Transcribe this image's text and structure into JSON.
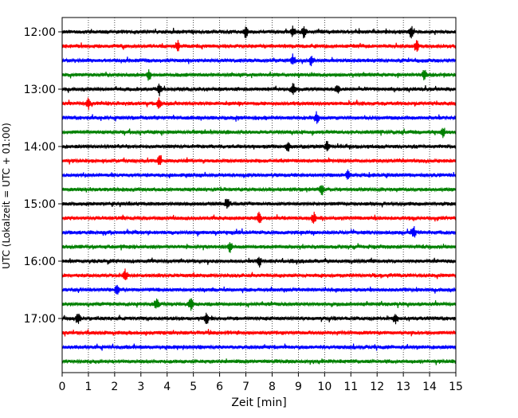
{
  "chart_data": {
    "type": "line",
    "title": "",
    "xlabel": "Zeit  [min]",
    "ylabel": "UTC (Lokalzeit = UTC + 01:00)",
    "xlim": [
      0,
      15
    ],
    "x_ticks": [
      0,
      1,
      2,
      3,
      4,
      5,
      6,
      7,
      8,
      9,
      10,
      11,
      12,
      13,
      14,
      15
    ],
    "x_grid": true,
    "y_tick_labels": [
      "12:00",
      "13:00",
      "14:00",
      "15:00",
      "16:00",
      "17:00"
    ],
    "trace_interval_min": 15,
    "traces_start": "12:00",
    "color_cycle": [
      "#000000",
      "#ff0000",
      "#0000ff",
      "#008000"
    ],
    "series": [
      {
        "start": "12:00",
        "color": "#000000",
        "events_min": [
          7.0,
          8.8,
          9.2,
          13.3
        ]
      },
      {
        "start": "12:15",
        "color": "#ff0000",
        "events_min": [
          4.4,
          13.5
        ]
      },
      {
        "start": "12:30",
        "color": "#0000ff",
        "events_min": [
          8.8,
          9.5
        ]
      },
      {
        "start": "12:45",
        "color": "#008000",
        "events_min": [
          3.3,
          13.8
        ]
      },
      {
        "start": "13:00",
        "color": "#000000",
        "events_min": [
          3.7,
          8.8,
          10.5
        ]
      },
      {
        "start": "13:15",
        "color": "#ff0000",
        "events_min": [
          1.0,
          3.7
        ]
      },
      {
        "start": "13:30",
        "color": "#0000ff",
        "events_min": [
          9.7
        ]
      },
      {
        "start": "13:45",
        "color": "#008000",
        "events_min": [
          14.5
        ]
      },
      {
        "start": "14:00",
        "color": "#000000",
        "events_min": [
          8.6,
          10.1
        ]
      },
      {
        "start": "14:15",
        "color": "#ff0000",
        "events_min": [
          3.7
        ]
      },
      {
        "start": "14:30",
        "color": "#0000ff",
        "events_min": [
          10.9
        ]
      },
      {
        "start": "14:45",
        "color": "#008000",
        "events_min": [
          9.9
        ]
      },
      {
        "start": "15:00",
        "color": "#000000",
        "events_min": [
          6.3
        ]
      },
      {
        "start": "15:15",
        "color": "#ff0000",
        "events_min": [
          7.5,
          9.6
        ]
      },
      {
        "start": "15:30",
        "color": "#0000ff",
        "events_min": [
          13.4
        ]
      },
      {
        "start": "15:45",
        "color": "#008000",
        "events_min": [
          6.4
        ]
      },
      {
        "start": "16:00",
        "color": "#000000",
        "events_min": [
          7.5
        ]
      },
      {
        "start": "16:15",
        "color": "#ff0000",
        "events_min": [
          2.4
        ]
      },
      {
        "start": "16:30",
        "color": "#0000ff",
        "events_min": [
          2.1
        ]
      },
      {
        "start": "16:45",
        "color": "#008000",
        "events_min": [
          3.6,
          4.9
        ]
      },
      {
        "start": "17:00",
        "color": "#000000",
        "events_min": [
          0.6,
          5.5,
          12.7
        ]
      },
      {
        "start": "17:15",
        "color": "#ff0000",
        "events_min": []
      },
      {
        "start": "17:30",
        "color": "#0000ff",
        "events_min": []
      },
      {
        "start": "17:45",
        "color": "#008000",
        "events_min": []
      }
    ]
  }
}
